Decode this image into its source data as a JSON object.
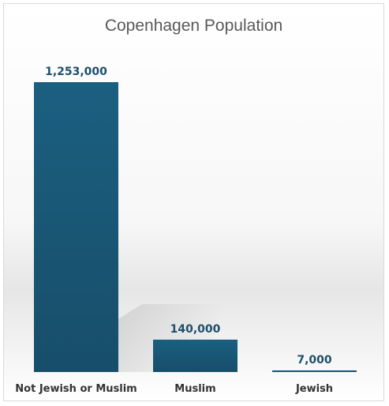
{
  "chart_data": {
    "type": "bar",
    "title": "Copenhagen Population",
    "categories": [
      "Not Jewish or Muslim",
      "Muslim",
      "Jewish"
    ],
    "values": [
      1253000,
      140000,
      7000
    ],
    "data_labels": [
      "1,253,000",
      "140,000",
      "7,000"
    ],
    "xlabel": "",
    "ylabel": "",
    "ylim": [
      0,
      1253000
    ],
    "grid": false,
    "legend": "none",
    "bar_color": "#1b5f80",
    "bar_color_dark": "#174e6a"
  }
}
